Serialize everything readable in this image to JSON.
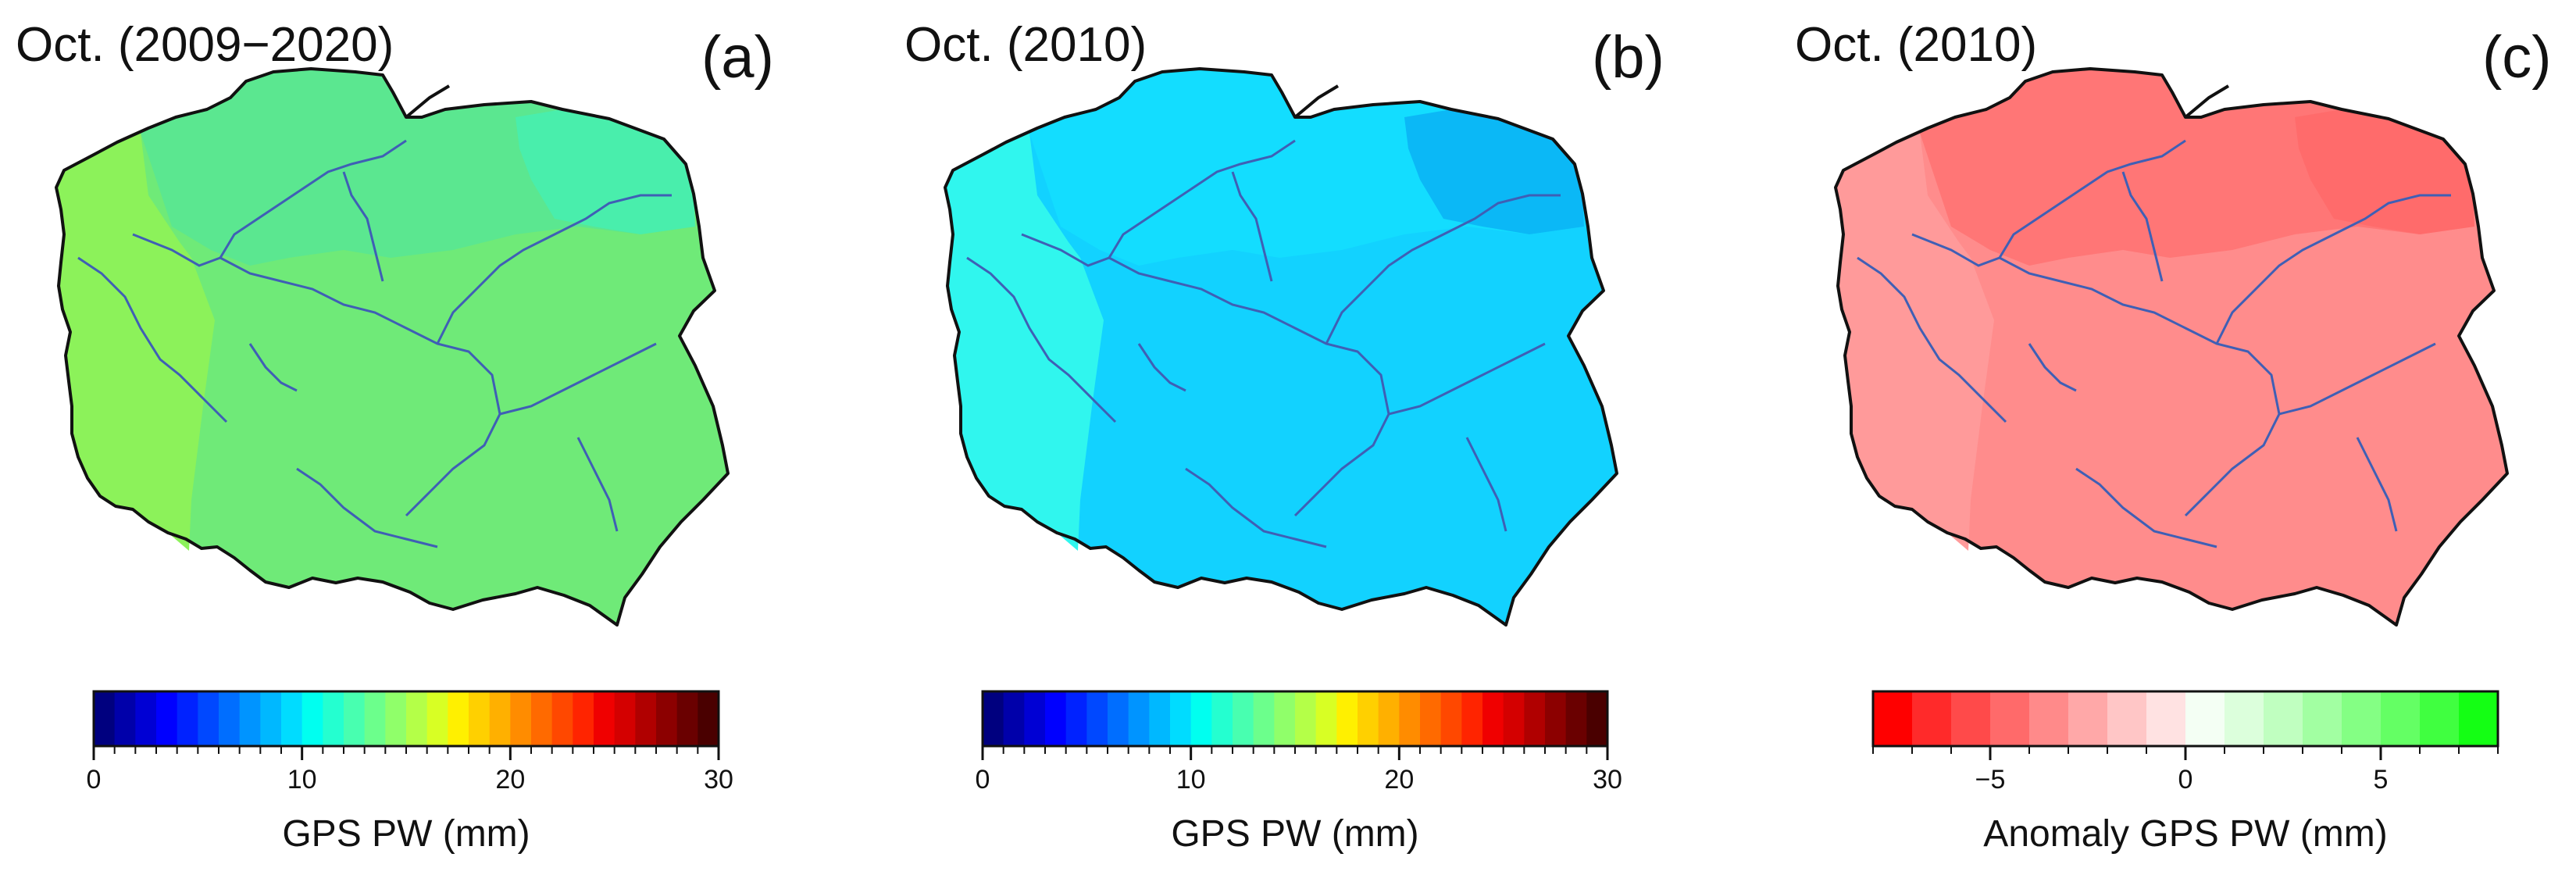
{
  "panels": [
    {
      "id": "a",
      "title": "Oct. (2009−2020)",
      "letter": "(a)",
      "map_colors": {
        "base": "#6fea78",
        "west": "#8cf25a",
        "north": "#56e696",
        "northeast": "#46eeb2"
      },
      "colorbar": {
        "label": "GPS PW (mm)",
        "min": 0,
        "max": 30,
        "ticks": [
          0,
          10,
          20,
          30
        ],
        "colors": [
          "#00007f",
          "#0000aa",
          "#0000d4",
          "#0000ff",
          "#0022ff",
          "#0048ff",
          "#006eff",
          "#0094ff",
          "#00b8ff",
          "#00dcff",
          "#00fff0",
          "#24ffd0",
          "#48ffb0",
          "#6cff8c",
          "#90ff6a",
          "#b4ff48",
          "#d8ff24",
          "#fff000",
          "#ffd000",
          "#ffb000",
          "#ff8c00",
          "#ff6a00",
          "#ff4800",
          "#ff2400",
          "#f00000",
          "#d40000",
          "#b00000",
          "#8c0000",
          "#6a0000",
          "#4a0000"
        ]
      }
    },
    {
      "id": "b",
      "title": "Oct. (2010)",
      "letter": "(b)",
      "map_colors": {
        "base": "#12d2ff",
        "west": "#30f6ee",
        "north": "#14e0ff",
        "northeast": "#0ab2f4"
      },
      "colorbar": {
        "label": "GPS PW (mm)",
        "min": 0,
        "max": 30,
        "ticks": [
          0,
          10,
          20,
          30
        ],
        "colors": [
          "#00007f",
          "#0000aa",
          "#0000d4",
          "#0000ff",
          "#0022ff",
          "#0048ff",
          "#006eff",
          "#0094ff",
          "#00b8ff",
          "#00dcff",
          "#00fff0",
          "#24ffd0",
          "#48ffb0",
          "#6cff8c",
          "#90ff6a",
          "#b4ff48",
          "#d8ff24",
          "#fff000",
          "#ffd000",
          "#ffb000",
          "#ff8c00",
          "#ff6a00",
          "#ff4800",
          "#ff2400",
          "#f00000",
          "#d40000",
          "#b00000",
          "#8c0000",
          "#6a0000",
          "#4a0000"
        ]
      }
    },
    {
      "id": "c",
      "title": "Oct. (2010)",
      "letter": "(c)",
      "map_colors": {
        "base": "#ff8c8c",
        "west": "#ff9a9a",
        "north": "#ff7070",
        "northeast": "#ff6a6a"
      },
      "colorbar": {
        "label": "Anomaly GPS PW (mm)",
        "min": -8,
        "max": 8,
        "ticks": [
          -5,
          0,
          5
        ],
        "tick_labels": [
          "−5",
          "0",
          "5"
        ],
        "colors": [
          "#ff0000",
          "#ff2a2a",
          "#ff4a4a",
          "#ff6a6a",
          "#ff8a8a",
          "#ffa8a8",
          "#ffc6c6",
          "#ffe2e2",
          "#f4fff4",
          "#dcffdc",
          "#c0ffc0",
          "#a2ffa2",
          "#84ff84",
          "#64ff64",
          "#40ff40",
          "#14ff14"
        ]
      }
    }
  ]
}
